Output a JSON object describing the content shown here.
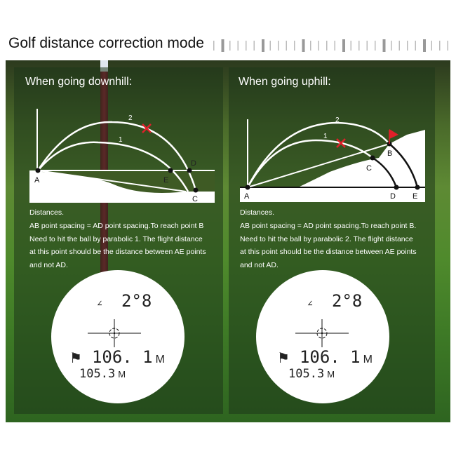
{
  "title": "Golf distance correction mode",
  "left": {
    "heading": "When going downhill:",
    "labels": {
      "arc2": "2",
      "arc1": "1",
      "A": "A",
      "E": "E",
      "D": "D",
      "C": "C"
    },
    "text": [
      "Distances.",
      "AB point spacing = AD point spacing.To reach point B",
      "Need to hit the ball by parabolic 1. The flight distance",
      "at this point should be the distance between AE points",
      "and not AD."
    ],
    "display": {
      "angle": "2°8",
      "distance": "106. 1",
      "distance_unit": "M",
      "corrected": "105.3",
      "corrected_unit": "M"
    }
  },
  "right": {
    "heading": "When going uphill:",
    "labels": {
      "arc2": "2",
      "arc1": "1",
      "A": "A",
      "B": "B",
      "C": "C",
      "D": "D",
      "E": "E"
    },
    "text": [
      "Distances.",
      "AB point spacing = AD point spacing.To reach point B.",
      "Need to hit the ball by parabolic 2. The flight distance",
      "at this point should be the distance between AE points",
      "and not AD."
    ],
    "display": {
      "angle": "2°8",
      "distance": "106. 1",
      "distance_unit": "M",
      "corrected": "105.3",
      "corrected_unit": "M"
    }
  },
  "colors": {
    "miss_mark": "#e0202a",
    "flag": "#e0202a",
    "overlay": "#1e3719"
  }
}
